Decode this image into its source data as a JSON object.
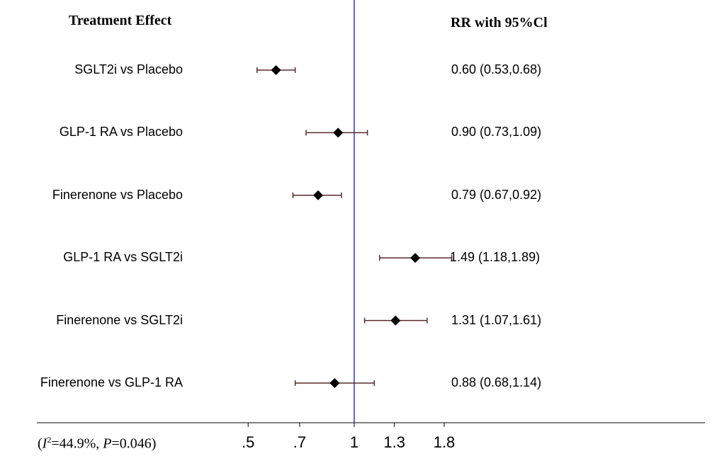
{
  "chart_data": {
    "type": "forest",
    "header_left": "Treatment Effect",
    "header_right": "RR with 95%Cl",
    "reference_line": 1,
    "x_scale": "log",
    "xticks": [
      0.5,
      0.7,
      1,
      1.3,
      1.8
    ],
    "xtick_labels": [
      ".5",
      ".7",
      "1",
      "1.3",
      "1.8"
    ],
    "rows": [
      {
        "label": "SGLT2i vs Placebo",
        "rr": 0.6,
        "lo": 0.53,
        "hi": 0.68,
        "text": "0.60 (0.53,0.68)"
      },
      {
        "label": "GLP-1 RA vs Placebo",
        "rr": 0.9,
        "lo": 0.73,
        "hi": 1.09,
        "text": "0.90 (0.73,1.09)"
      },
      {
        "label": "Finerenone vs Placebo",
        "rr": 0.79,
        "lo": 0.67,
        "hi": 0.92,
        "text": "0.79 (0.67,0.92)"
      },
      {
        "label": "GLP-1 RA vs SGLT2i",
        "rr": 1.49,
        "lo": 1.18,
        "hi": 1.89,
        "text": "1.49 (1.18,1.89)"
      },
      {
        "label": "Finerenone vs SGLT2i",
        "rr": 1.31,
        "lo": 1.07,
        "hi": 1.61,
        "text": "1.31 (1.07,1.61)"
      },
      {
        "label": "Finerenone vs GLP-1 RA",
        "rr": 0.88,
        "lo": 0.68,
        "hi": 1.14,
        "text": "0.88 (0.68,1.14)"
      }
    ],
    "heterogeneity": {
      "i2": "44.9%",
      "p": "0.046"
    },
    "colors": {
      "reference": "#3333cc",
      "ci": "#5a2a2a",
      "marker": "#000000"
    }
  }
}
